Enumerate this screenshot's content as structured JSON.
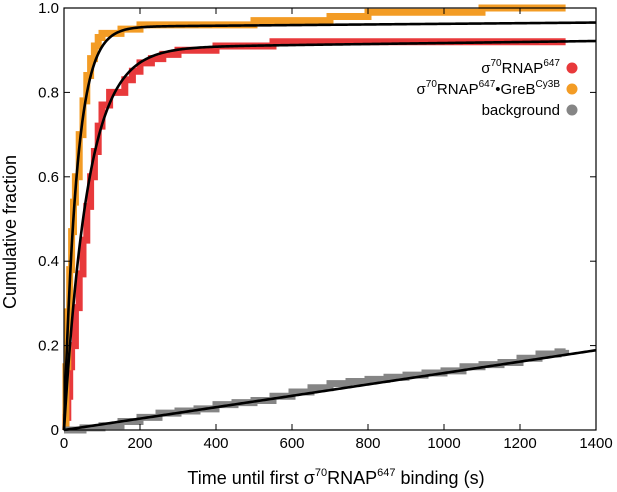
{
  "chart_data": {
    "type": "line",
    "xlabel": {
      "pre": "Time until first σ",
      "sup1": "70",
      "mid": "RNAP",
      "sup2": "647",
      "post": " binding (s)"
    },
    "ylabel": "Cumulative fraction",
    "xlim": [
      0,
      1400
    ],
    "ylim": [
      0,
      1.0
    ],
    "x_ticks": [
      0,
      200,
      400,
      600,
      800,
      1000,
      1200,
      1400
    ],
    "y_ticks": [
      0,
      0.2,
      0.4,
      0.6,
      0.8,
      1.0
    ],
    "y_tick_labels": [
      "0",
      "0.2",
      "0.4",
      "0.6",
      "0.8",
      "1.0"
    ],
    "grid": false,
    "legend_position": "top-right",
    "series": [
      {
        "id": "rnap",
        "legend": {
          "pre": "σ",
          "sup1": "70",
          "mid": "RNAP",
          "sup2": "647",
          "post": ""
        },
        "color": "#e8393b",
        "kind": "step",
        "x": [
          0,
          5,
          10,
          15,
          20,
          30,
          40,
          50,
          60,
          70,
          80,
          90,
          100,
          120,
          140,
          160,
          180,
          200,
          230,
          260,
          300,
          350,
          400,
          500,
          550,
          600,
          700,
          800,
          900,
          1000,
          1100,
          1200,
          1320
        ],
        "y": [
          0,
          0.03,
          0.08,
          0.15,
          0.2,
          0.29,
          0.37,
          0.45,
          0.53,
          0.6,
          0.66,
          0.72,
          0.77,
          0.8,
          0.8,
          0.83,
          0.85,
          0.87,
          0.88,
          0.89,
          0.9,
          0.9,
          0.91,
          0.91,
          0.92,
          0.92,
          0.92,
          0.92,
          0.92,
          0.92,
          0.92,
          0.92,
          0.92
        ]
      },
      {
        "id": "rnap_greb",
        "legend": {
          "pre": "σ",
          "sup1": "70",
          "mid": "RNAP",
          "sup2": "647",
          "post": "•GreB",
          "sup3": "Cy3B"
        },
        "color": "#f39c25",
        "kind": "step",
        "x": [
          0,
          5,
          10,
          15,
          20,
          25,
          30,
          40,
          50,
          60,
          70,
          80,
          90,
          100,
          120,
          150,
          180,
          200,
          300,
          400,
          500,
          600,
          700,
          800,
          900,
          1000,
          1100,
          1200,
          1320
        ],
        "y": [
          0,
          0.15,
          0.28,
          0.38,
          0.47,
          0.54,
          0.6,
          0.7,
          0.78,
          0.84,
          0.88,
          0.91,
          0.93,
          0.94,
          0.94,
          0.95,
          0.95,
          0.96,
          0.96,
          0.96,
          0.97,
          0.97,
          0.98,
          0.99,
          0.99,
          0.99,
          1.0,
          1.0,
          1.0
        ]
      },
      {
        "id": "background",
        "legend": {
          "pre": "background"
        },
        "color": "#858585",
        "kind": "step",
        "x": [
          0,
          50,
          100,
          150,
          200,
          250,
          300,
          350,
          400,
          450,
          500,
          550,
          600,
          650,
          700,
          750,
          800,
          850,
          900,
          950,
          1000,
          1050,
          1100,
          1150,
          1200,
          1250,
          1300,
          1320
        ],
        "y": [
          0,
          0.005,
          0.01,
          0.02,
          0.03,
          0.04,
          0.045,
          0.05,
          0.06,
          0.065,
          0.07,
          0.08,
          0.09,
          0.1,
          0.11,
          0.115,
          0.12,
          0.125,
          0.13,
          0.135,
          0.14,
          0.15,
          0.155,
          0.16,
          0.17,
          0.18,
          0.185,
          0.19
        ]
      }
    ],
    "fits": [
      {
        "for": "rnap_greb",
        "color": "#000000",
        "model": "1 - exp",
        "amplitude": 0.955,
        "rate": 0.03,
        "slope": 7.5e-06
      },
      {
        "for": "rnap",
        "color": "#000000",
        "model": "1 - exp",
        "amplitude": 0.905,
        "rate": 0.016,
        "slope": 1.2e-05
      },
      {
        "for": "background",
        "color": "#000000",
        "model": "linear",
        "slope": 0.000135
      }
    ]
  }
}
